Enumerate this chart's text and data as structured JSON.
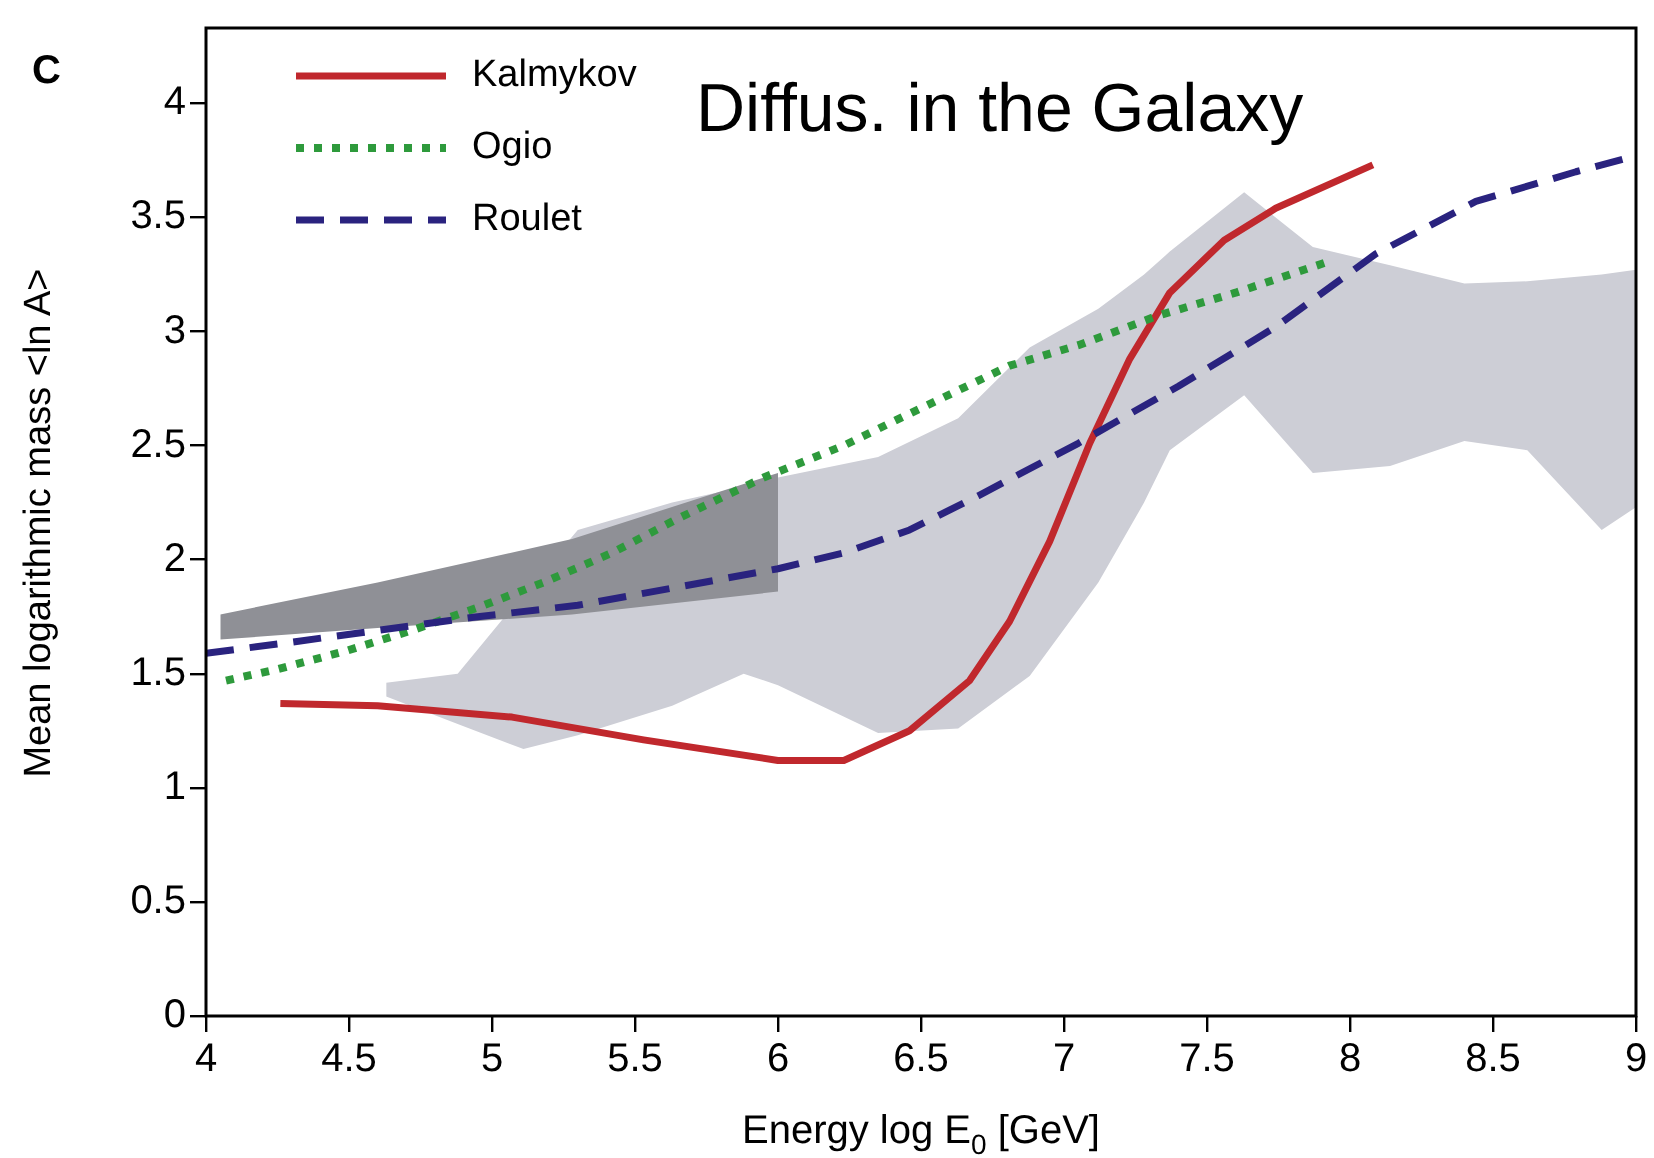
{
  "chart_data": {
    "type": "line",
    "title": "Diffus. in the Galaxy",
    "xlabel": "Energy log E$_{0}$ [GeV]",
    "ylabel": "Mean logarithmic mass <ln A>",
    "annotations": [
      "C"
    ],
    "xlim": [
      4,
      9
    ],
    "xticks": [
      4,
      4.5,
      5,
      5.5,
      6,
      6.5,
      7,
      7.5,
      8,
      8.5,
      9
    ],
    "ylim": [
      0,
      4.33
    ],
    "yticks": [
      0,
      0.5,
      1,
      1.5,
      2,
      2.5,
      3,
      3.5,
      4
    ],
    "legend": "top left",
    "marker": "none",
    "series": [
      {
        "color": "#cdced6",
        "x": [
          4.63,
          4.88,
          5.11,
          5.3,
          5.63,
          5.88,
          6.0,
          6.35,
          6.63,
          6.88,
          7.12,
          7.28,
          7.37,
          7.63,
          7.87,
          8.14,
          8.4,
          8.62,
          8.88,
          9.0
        ],
        "values": [
          null,
          null,
          null,
          null,
          null,
          null,
          null,
          null,
          null,
          null,
          null,
          null,
          null,
          null,
          null,
          null,
          null,
          null,
          null,
          null
        ],
        "lower": [
          1.4,
          1.28,
          1.17,
          1.23,
          1.36,
          1.5,
          1.45,
          1.24,
          1.26,
          1.49,
          1.9,
          2.25,
          2.48,
          2.72,
          2.38,
          2.41,
          2.52,
          2.48,
          2.13,
          2.23
        ],
        "upper": [
          1.46,
          1.5,
          1.85,
          2.13,
          2.25,
          2.32,
          2.36,
          2.45,
          2.62,
          2.93,
          3.1,
          3.25,
          3.35,
          3.61,
          3.37,
          3.29,
          3.21,
          3.22,
          3.25,
          3.27
        ]
      },
      {
        "color": "#8f9096",
        "x": [
          4.05,
          4.6,
          5.28,
          6.0
        ],
        "values": [
          null,
          null,
          null,
          null
        ],
        "lower": [
          1.65,
          1.7,
          1.76,
          1.86
        ],
        "upper": [
          1.76,
          1.9,
          2.09,
          2.38
        ]
      },
      {
        "name": "Kalmykov",
        "color": "#c0282d",
        "line_style": "solid",
        "x": [
          4.26,
          4.6,
          5.07,
          5.53,
          6.0,
          6.23,
          6.46,
          6.67,
          6.81,
          6.95,
          7.09,
          7.23,
          7.37,
          7.56,
          7.74,
          8.08
        ],
        "values": [
          1.37,
          1.36,
          1.31,
          1.21,
          1.12,
          1.12,
          1.25,
          1.47,
          1.73,
          2.08,
          2.51,
          2.88,
          3.17,
          3.4,
          3.54,
          3.73
        ]
      },
      {
        "name": "Ogio",
        "color": "#2e9a3c",
        "line_style": "dotted",
        "x": [
          4.07,
          4.25,
          4.49,
          4.72,
          4.95,
          5.18,
          5.42,
          5.65,
          5.95,
          6.23,
          6.46,
          6.81,
          7.05,
          7.33,
          7.6,
          7.91
        ],
        "values": [
          1.47,
          1.52,
          1.6,
          1.69,
          1.79,
          1.9,
          2.03,
          2.18,
          2.36,
          2.5,
          2.64,
          2.85,
          2.94,
          3.07,
          3.17,
          3.3
        ]
      },
      {
        "name": "Roulet",
        "color": "#2a237f",
        "line_style": "dashed",
        "x": [
          4.0,
          4.25,
          4.6,
          4.95,
          5.3,
          5.65,
          6.0,
          6.23,
          6.46,
          6.7,
          7.05,
          7.4,
          7.74,
          8.09,
          8.44,
          8.79,
          9.0
        ],
        "values": [
          1.59,
          1.63,
          1.69,
          1.75,
          1.8,
          1.88,
          1.96,
          2.03,
          2.13,
          2.28,
          2.51,
          2.76,
          3.02,
          3.34,
          3.57,
          3.7,
          3.77
        ]
      }
    ]
  }
}
